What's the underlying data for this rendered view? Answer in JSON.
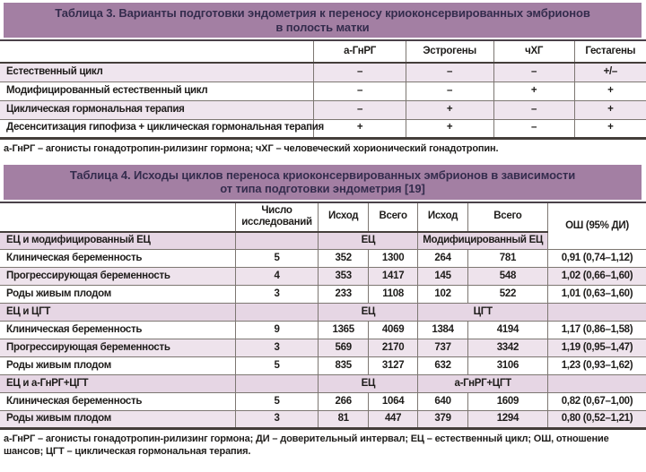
{
  "colors": {
    "band": "#a37fa3",
    "band_text": "#342c4d",
    "pink_row": "#efe5ee",
    "stripe_row": "#eee3ec",
    "section_row": "#e6d6e4",
    "rule_thin": "#7d7772",
    "rule_thick": "#443e3a",
    "rule_dark": "#4a4149",
    "text": "#1f1d1b"
  },
  "table3": {
    "title_line1": "Таблица 3. Варианты подготовки эндометрия к переносу криоконсервированных эмбрионов",
    "title_line2": "в полость матки",
    "columns": [
      "",
      "а-ГнРГ",
      "Эстрогены",
      "чХГ",
      "Гестагены"
    ],
    "rows": [
      {
        "label": "Естественный цикл",
        "values": [
          "–",
          "–",
          "–",
          "+/–"
        ]
      },
      {
        "label": "Модифицированный естественный цикл",
        "values": [
          "–",
          "–",
          "+",
          "+"
        ]
      },
      {
        "label": "Циклическая гормональная терапия",
        "values": [
          "–",
          "+",
          "–",
          "+"
        ]
      },
      {
        "label": "Десенситизация гипофиза + циклическая гормональная терапия",
        "values": [
          "+",
          "+",
          "–",
          "+"
        ]
      }
    ],
    "footnote": "а-ГнРГ – агонисты гонадотропин-рилизинг гормона; чХГ – человеческий хорионический гонадотропин."
  },
  "table4": {
    "title_line1": "Таблица 4. Исходы циклов переноса криоконсервированных эмбрионов в зависимости",
    "title_line2": "от типа подготовки эндометрия [19]",
    "header": {
      "study_count": "Число исследований",
      "outcome": "Исход",
      "total": "Всего",
      "odds_ratio": "ОШ (95% ДИ)"
    },
    "sections": [
      {
        "label": "ЕЦ и модифицированный ЕЦ",
        "group1": "ЕЦ",
        "group2": "Модифицированный ЕЦ",
        "rows": [
          {
            "label": "Клиническая беременность",
            "n": "5",
            "e1": "352",
            "t1": "1300",
            "e2": "264",
            "t2": "781",
            "or": "0,91 (0,74–1,12)"
          },
          {
            "label": "Прогрессирующая беременность",
            "n": "4",
            "e1": "353",
            "t1": "1417",
            "e2": "145",
            "t2": "548",
            "or": "1,02 (0,66–1,60)"
          },
          {
            "label": "Роды живым плодом",
            "n": "3",
            "e1": "233",
            "t1": "1108",
            "e2": "102",
            "t2": "522",
            "or": "1,01 (0,63–1,60)"
          }
        ]
      },
      {
        "label": "ЕЦ и ЦГТ",
        "group1": "ЕЦ",
        "group2": "ЦГТ",
        "rows": [
          {
            "label": "Клиническая беременность",
            "n": "9",
            "e1": "1365",
            "t1": "4069",
            "e2": "1384",
            "t2": "4194",
            "or": "1,17 (0,86–1,58)"
          },
          {
            "label": "Прогрессирующая беременность",
            "n": "3",
            "e1": "569",
            "t1": "2170",
            "e2": "737",
            "t2": "3342",
            "or": "1,19 (0,95–1,47)"
          },
          {
            "label": "Роды живым плодом",
            "n": "5",
            "e1": "835",
            "t1": "3127",
            "e2": "632",
            "t2": "3106",
            "or": "1,23 (0,93–1,62)"
          }
        ]
      },
      {
        "label": "ЕЦ и а-ГнРГ+ЦГТ",
        "group1": "ЕЦ",
        "group2": "а-ГнРГ+ЦГТ",
        "rows": [
          {
            "label": "Клиническая беременность",
            "n": "5",
            "e1": "266",
            "t1": "1064",
            "e2": "640",
            "t2": "1609",
            "or": "0,82 (0,67–1,00)"
          },
          {
            "label": "Роды живым плодом",
            "n": "3",
            "e1": "81",
            "t1": "447",
            "e2": "379",
            "t2": "1294",
            "or": "0,80 (0,52–1,21)"
          }
        ]
      }
    ],
    "footnote": "а-ГнРГ – агонисты гонадотропин-рилизинг гормона; ДИ – доверительный интервал; ЕЦ – естественный цикл; ОШ, отношение шансов; ЦГТ – циклическая гормональная терапия."
  }
}
